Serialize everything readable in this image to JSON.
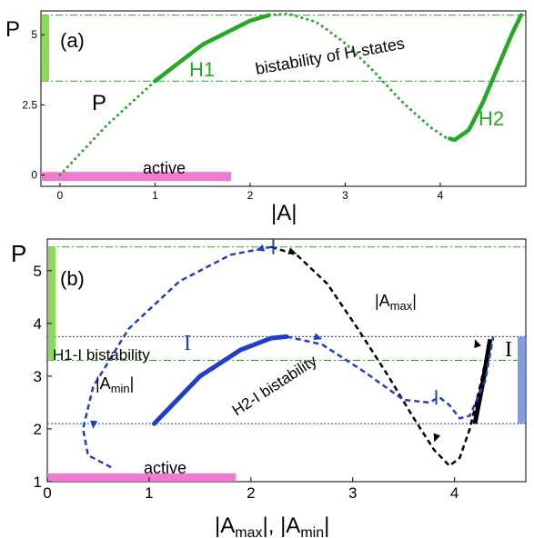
{
  "colors": {
    "green": "#22aa22",
    "blue": "#1e3fcc",
    "black": "#000000",
    "pink": "#f07ad2",
    "light_green": "#88dd55",
    "light_blue": "#7f9ee6"
  },
  "chart_data": [
    {
      "type": "line",
      "panel_label": "(a)",
      "ylabel": "P",
      "xlabel": "|A|",
      "xlim": [
        -0.2,
        4.9
      ],
      "ylim": [
        -0.4,
        5.85
      ],
      "xticks": [
        0,
        1,
        2,
        3,
        4
      ],
      "yticks": [
        {
          "v": 0,
          "t": "0"
        },
        {
          "v": 2.5,
          "t": "2.5"
        },
        {
          "v": 5,
          "t": "5"
        }
      ],
      "hlines": [
        3.35,
        5.7
      ],
      "curve": {
        "x": [
          0,
          0.5,
          1.0,
          1.5,
          2.0,
          2.2,
          2.4,
          2.7,
          3.0,
          3.3,
          3.6,
          3.9,
          4.05,
          4.15,
          4.3,
          4.45,
          4.6,
          4.75,
          4.85
        ],
        "y": [
          0,
          1.8,
          3.35,
          4.65,
          5.5,
          5.7,
          5.75,
          5.45,
          4.7,
          3.7,
          2.6,
          1.7,
          1.35,
          1.25,
          1.6,
          2.6,
          3.8,
          5.0,
          5.7
        ]
      },
      "segments": [
        {
          "name": "H1",
          "style": "solid",
          "x_range": [
            1.0,
            2.2
          ]
        },
        {
          "name": "dotted",
          "style": "dotted",
          "x_range": [
            0,
            1.0
          ]
        },
        {
          "name": "dotted",
          "style": "dotted",
          "x_range": [
            2.2,
            4.1
          ]
        },
        {
          "name": "H2",
          "style": "solid",
          "x_range": [
            4.1,
            4.85
          ]
        }
      ],
      "annotations": [
        "H1",
        "H2",
        "P",
        "bistability of H-states"
      ],
      "bands": [
        {
          "label": "active",
          "x_range": [
            -0.2,
            1.8
          ]
        }
      ],
      "vbars": [
        {
          "y_range": [
            3.35,
            5.7
          ]
        }
      ]
    },
    {
      "type": "line",
      "panel_label": "(b)",
      "ylabel": "P",
      "xlabel": "|A_max|, |A_min|",
      "xlim": [
        0,
        4.7
      ],
      "ylim": [
        1,
        5.6
      ],
      "xticks": [
        0,
        1,
        2,
        3,
        4
      ],
      "yticks": [
        1,
        2,
        3,
        4,
        5
      ],
      "hlines_green": [
        5.45,
        3.3
      ],
      "hlines_blue": [
        3.75,
        2.1
      ],
      "A_max_curve": {
        "x": [
          2.2,
          2.45,
          2.75,
          3.05,
          3.35,
          3.6,
          3.8,
          3.95,
          4.05,
          4.15,
          4.25,
          4.35
        ],
        "y": [
          5.45,
          5.3,
          4.75,
          3.9,
          3.0,
          2.2,
          1.6,
          1.3,
          1.45,
          2.0,
          2.8,
          3.7
        ]
      },
      "A_min_curve": {
        "x": [
          1.05,
          1.5,
          1.9,
          2.2,
          2.35,
          2.7,
          3.1,
          3.5,
          3.75,
          3.85,
          3.95,
          4.05,
          4.15,
          4.3,
          4.38
        ],
        "y": [
          2.1,
          3.0,
          3.5,
          3.72,
          3.75,
          3.6,
          3.1,
          2.55,
          2.5,
          2.6,
          2.45,
          2.2,
          2.25,
          2.9,
          3.75
        ]
      },
      "A_min_lower": {
        "x": [
          2.2,
          1.8,
          1.3,
          0.8,
          0.45,
          0.35,
          0.4,
          0.65
        ],
        "y": [
          5.45,
          5.3,
          4.8,
          3.9,
          2.8,
          2.0,
          1.5,
          1.25
        ]
      },
      "annotations": [
        "I",
        "|A_max|",
        "|A_min|",
        "H1-I bistability",
        "H2-I bistability",
        "I"
      ],
      "bands": [
        {
          "label": "active",
          "x_range": [
            0,
            1.85
          ]
        }
      ],
      "vbars": [
        {
          "y_range": [
            3.3,
            5.45
          ],
          "color": "green"
        },
        {
          "y_range": [
            2.1,
            3.75
          ],
          "color": "blue"
        }
      ]
    }
  ],
  "text": {
    "a_panel": "(a)",
    "a_ylabel": "P",
    "a_xlabel": "|A|",
    "a_H1": "H1",
    "a_H2": "H2",
    "a_P": "P",
    "a_bist": "bistability of H-states",
    "a_active": "active",
    "b_panel": "(b)",
    "b_ylabel": "P",
    "b_I_left": "I",
    "b_I_right": "I",
    "b_Amax_open": "|A",
    "b_Amax_sub": "max",
    "b_Amax_close": "|",
    "b_Amin_open": "|A",
    "b_Amin_sub": "min",
    "b_Amin_close": "|",
    "b_H1I": "H1-I bistability",
    "b_H2I": "H2-I bistability",
    "b_active": "active",
    "b_xlabel_1": "|A",
    "b_xlabel_1sub": "max",
    "b_xlabel_1close": "|, ",
    "b_xlabel_2": "|A",
    "b_xlabel_2sub": "min",
    "b_xlabel_2close": "|"
  }
}
